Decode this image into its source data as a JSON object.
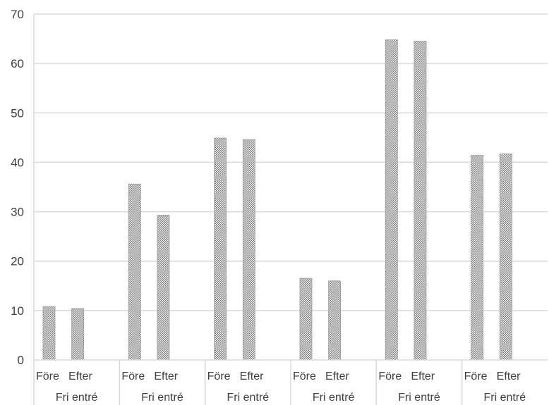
{
  "chart_data": {
    "type": "bar",
    "groups": [
      {
        "label": "Fri entré",
        "categories": [
          "Före",
          "Efter"
        ],
        "values": [
          10.8,
          10.4
        ]
      },
      {
        "label": "Fri entré",
        "categories": [
          "Före",
          "Efter"
        ],
        "values": [
          35.6,
          29.3
        ]
      },
      {
        "label": "Fri entré",
        "categories": [
          "Före",
          "Efter"
        ],
        "values": [
          44.9,
          44.6
        ]
      },
      {
        "label": "Fri entré",
        "categories": [
          "Före",
          "Efter"
        ],
        "values": [
          16.5,
          16.0
        ]
      },
      {
        "label": "Fri entré",
        "categories": [
          "Före",
          "Efter"
        ],
        "values": [
          64.8,
          64.5
        ]
      },
      {
        "label": "Fri entré",
        "categories": [
          "Före",
          "Efter"
        ],
        "values": [
          41.4,
          41.7
        ]
      }
    ],
    "ylim": [
      0,
      70
    ],
    "yticks": [
      "0",
      "10",
      "20",
      "30",
      "40",
      "50",
      "60",
      "70"
    ],
    "grid": true,
    "legend": "none",
    "bar_fill": "#c8c8c8",
    "bar_pattern": "crosshatch",
    "gridline_color": "#d9d9d9"
  }
}
